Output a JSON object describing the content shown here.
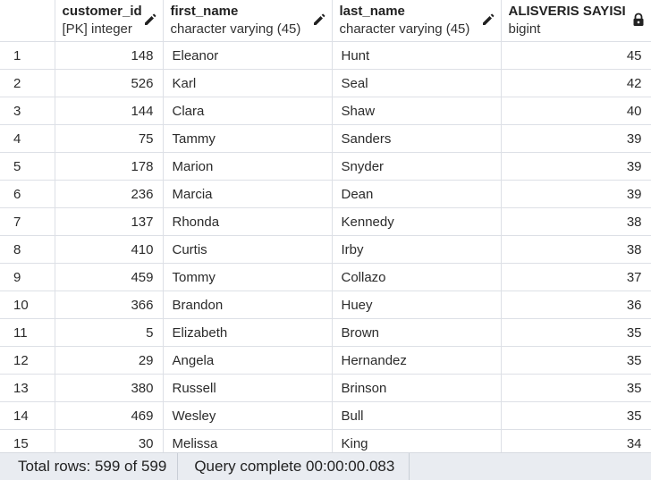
{
  "columns": [
    {
      "name": "",
      "type": "",
      "icon": ""
    },
    {
      "name": "customer_id",
      "type": "[PK] integer",
      "icon": "pencil-icon"
    },
    {
      "name": "first_name",
      "type": "character varying (45)",
      "icon": "pencil-icon"
    },
    {
      "name": "last_name",
      "type": "character varying (45)",
      "icon": "pencil-icon"
    },
    {
      "name": "ALISVERIS SAYISI",
      "type": "bigint",
      "icon": "lock-icon"
    }
  ],
  "rows": [
    {
      "n": "1",
      "customer_id": "148",
      "first_name": "Eleanor",
      "last_name": "Hunt",
      "count": "45"
    },
    {
      "n": "2",
      "customer_id": "526",
      "first_name": "Karl",
      "last_name": "Seal",
      "count": "42"
    },
    {
      "n": "3",
      "customer_id": "144",
      "first_name": "Clara",
      "last_name": "Shaw",
      "count": "40"
    },
    {
      "n": "4",
      "customer_id": "75",
      "first_name": "Tammy",
      "last_name": "Sanders",
      "count": "39"
    },
    {
      "n": "5",
      "customer_id": "178",
      "first_name": "Marion",
      "last_name": "Snyder",
      "count": "39"
    },
    {
      "n": "6",
      "customer_id": "236",
      "first_name": "Marcia",
      "last_name": "Dean",
      "count": "39"
    },
    {
      "n": "7",
      "customer_id": "137",
      "first_name": "Rhonda",
      "last_name": "Kennedy",
      "count": "38"
    },
    {
      "n": "8",
      "customer_id": "410",
      "first_name": "Curtis",
      "last_name": "Irby",
      "count": "38"
    },
    {
      "n": "9",
      "customer_id": "459",
      "first_name": "Tommy",
      "last_name": "Collazo",
      "count": "37"
    },
    {
      "n": "10",
      "customer_id": "366",
      "first_name": "Brandon",
      "last_name": "Huey",
      "count": "36"
    },
    {
      "n": "11",
      "customer_id": "5",
      "first_name": "Elizabeth",
      "last_name": "Brown",
      "count": "35"
    },
    {
      "n": "12",
      "customer_id": "29",
      "first_name": "Angela",
      "last_name": "Hernandez",
      "count": "35"
    },
    {
      "n": "13",
      "customer_id": "380",
      "first_name": "Russell",
      "last_name": "Brinson",
      "count": "35"
    },
    {
      "n": "14",
      "customer_id": "469",
      "first_name": "Wesley",
      "last_name": "Bull",
      "count": "35"
    },
    {
      "n": "15",
      "customer_id": "30",
      "first_name": "Melissa",
      "last_name": "King",
      "count": "34"
    }
  ],
  "status": {
    "total_rows": "Total rows: 599 of 599",
    "query": "Query complete 00:00:00.083"
  },
  "colors": {
    "grid_line": "#dde0e6",
    "status_bg": "#e9ecf1",
    "text": "#222222"
  }
}
